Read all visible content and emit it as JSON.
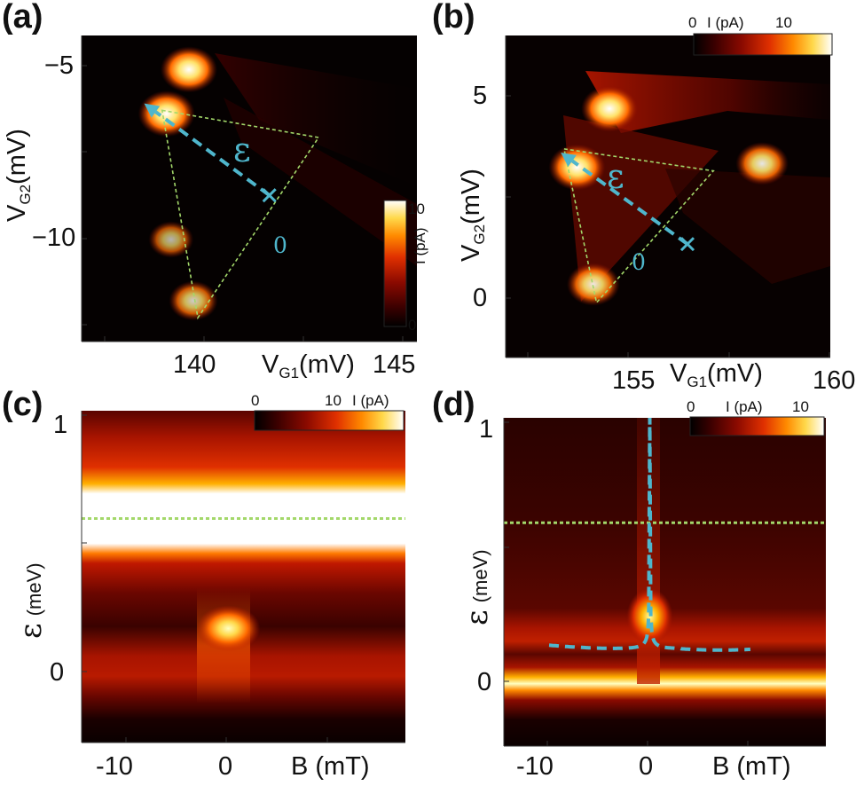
{
  "chart_data": [
    {
      "panel": "(a)",
      "type": "heatmap",
      "xlabel": "V",
      "xlabel_sub": "G1",
      "xlabel_unit": "(mV)",
      "ylabel": "V",
      "ylabel_sub": "G2",
      "ylabel_unit": "(mV)",
      "x_ticks": [
        "140",
        "145"
      ],
      "y_ticks": [
        "−5",
        "−10"
      ],
      "xlim": [
        137.5,
        145
      ],
      "ylim": [
        -13.5,
        -4.5
      ],
      "colorbar": {
        "label": "I (pA)",
        "ticks": [
          "10",
          "0"
        ],
        "range": [
          0,
          12
        ]
      },
      "annotation_epsilon": "ε",
      "annotation_zero": "0",
      "triangle": [
        [
          139.3,
          -6.7
        ],
        [
          142.8,
          -7.5
        ],
        [
          140.1,
          -12.8
        ]
      ],
      "epsilon_arrow": {
        "from": [
          141.7,
          -9.2
        ],
        "to": [
          138.9,
          -6.5
        ]
      },
      "features": [
        {
          "x": 139.9,
          "y": -5.5,
          "intensity": 1.0
        },
        {
          "x": 139.4,
          "y": -6.8,
          "intensity": 1.0
        },
        {
          "x": 139.5,
          "y": -10.5,
          "intensity": 0.7
        },
        {
          "x": 140.0,
          "y": -12.3,
          "intensity": 0.8
        }
      ]
    },
    {
      "panel": "(b)",
      "type": "heatmap",
      "xlabel": "V",
      "xlabel_sub": "G1",
      "xlabel_unit": "(mV)",
      "ylabel": "V",
      "ylabel_sub": "G2",
      "ylabel_unit": "(mV)",
      "x_ticks": [
        "155",
        "160"
      ],
      "y_ticks": [
        "5",
        "0"
      ],
      "xlim": [
        150,
        160
      ],
      "ylim": [
        -1.8,
        7
      ],
      "colorbar": {
        "label": "I (pA)",
        "ticks": [
          "0",
          "10"
        ],
        "range": [
          0,
          12
        ]
      },
      "annotation_epsilon": "ε",
      "annotation_zero": "0",
      "triangle": [
        [
          151.8,
          3.9
        ],
        [
          156.4,
          3.3
        ],
        [
          152.8,
          -0.3
        ]
      ],
      "epsilon_arrow": {
        "from": [
          155.6,
          1.3
        ],
        "to": [
          151.7,
          3.8
        ]
      },
      "features": [
        {
          "x": 153.2,
          "y": 5.0,
          "intensity": 1.0
        },
        {
          "x": 152.2,
          "y": 3.4,
          "intensity": 1.0
        },
        {
          "x": 157.9,
          "y": 3.5,
          "intensity": 0.9
        },
        {
          "x": 152.7,
          "y": 0.2,
          "intensity": 0.9
        }
      ]
    },
    {
      "panel": "(c)",
      "type": "heatmap",
      "xlabel": "B (mT)",
      "ylabel": "ε",
      "ylabel_unit": "(meV)",
      "x_ticks": [
        "-10",
        "0"
      ],
      "y_ticks": [
        "1",
        "0"
      ],
      "xlim": [
        -14.5,
        17.5
      ],
      "ylim": [
        -0.55,
        1.05
      ],
      "colorbar": {
        "label": "I (pA)",
        "ticks": [
          "0",
          "10"
        ],
        "range": [
          0,
          12
        ]
      },
      "green_line_y": 0.53,
      "bands": [
        {
          "y": 0.75,
          "width": 0.2,
          "intensity": 1.0
        },
        {
          "y": 0.0,
          "width": 0.07,
          "intensity": 0.55
        }
      ],
      "peak": {
        "x": 0,
        "y": 0.0,
        "intensity": 1.0
      }
    },
    {
      "panel": "(d)",
      "type": "heatmap",
      "xlabel": "B (mT)",
      "ylabel": "ε",
      "ylabel_unit": "(meV)",
      "x_ticks": [
        "-10",
        "0"
      ],
      "y_ticks": [
        "1",
        "0"
      ],
      "xlim": [
        -14.5,
        17.5
      ],
      "ylim": [
        -0.45,
        1.02
      ],
      "colorbar": {
        "label": "I (pA)",
        "ticks": [
          "0",
          "10"
        ],
        "range": [
          0,
          12
        ]
      },
      "green_line_y": 0.55,
      "bands": [
        {
          "y": 0.0,
          "width": 0.03,
          "intensity": 1.0
        },
        {
          "y": 0.25,
          "width": 0.05,
          "intensity": 0.45
        }
      ],
      "peak": {
        "x": 0,
        "y": 0.13,
        "intensity": 0.9
      },
      "lorentzian_fit": true
    }
  ],
  "colors": {
    "cyan": "#4fb6cc",
    "green": "#a3d86a",
    "colormap": [
      "#000000",
      "#3a0000",
      "#8b0a00",
      "#d22a00",
      "#ff6a00",
      "#ffb000",
      "#ffeb6a",
      "#ffffff"
    ]
  }
}
